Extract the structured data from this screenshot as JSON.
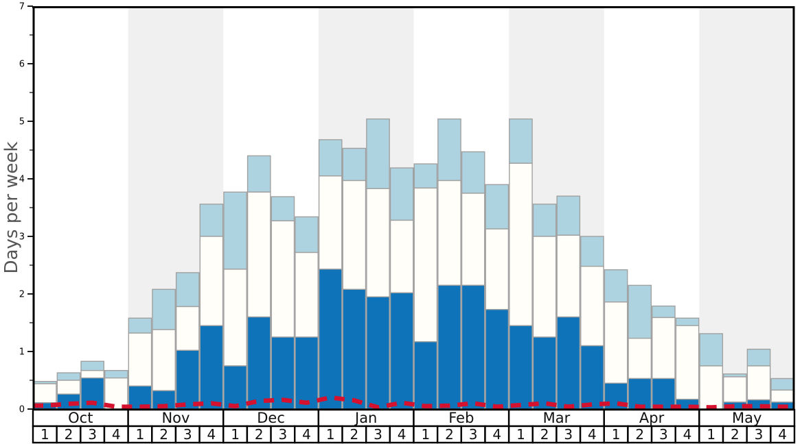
{
  "chart_data": {
    "type": "bar",
    "subtype": "stacked-bars-with-dashed-line-overlay",
    "title": "",
    "ylabel": "Days per week",
    "ylim": [
      0,
      7
    ],
    "yticks": [
      "0",
      "1",
      "2",
      "3",
      "4",
      "5",
      "6",
      "7"
    ],
    "minor_ticks_at_halves": true,
    "grid": false,
    "legend_position": "none",
    "months": [
      "Oct",
      "Nov",
      "Dec",
      "Jan",
      "Feb",
      "Mar",
      "Apr",
      "May"
    ],
    "weeks_per_month": [
      "1",
      "2",
      "3",
      "4"
    ],
    "band_colors": {
      "alternate_month_band": "#f0f0f0",
      "base_month_band": "#ffffff"
    },
    "bar_border_color": "#a0a0a0",
    "axis_color": "#000000",
    "label_text_color": "#111111",
    "ylabel_color": "#555555",
    "series": [
      {
        "name": "dark-blue-segment",
        "color": "#0e73b8",
        "stack_top": [
          0.11,
          0.26,
          0.54,
          0.0,
          0.4,
          0.32,
          1.02,
          1.45,
          0.75,
          1.6,
          1.25,
          1.25,
          2.43,
          2.08,
          1.95,
          2.02,
          1.17,
          2.15,
          2.15,
          1.73,
          1.45,
          1.25,
          1.6,
          1.1,
          0.45,
          0.53,
          0.53,
          0.17,
          0.0,
          0.12,
          0.16,
          0.12
        ]
      },
      {
        "name": "white-segment",
        "color": "#fffef9",
        "stack_top": [
          0.44,
          0.5,
          0.67,
          0.54,
          1.32,
          1.38,
          1.78,
          3.0,
          2.43,
          3.77,
          3.27,
          2.72,
          4.05,
          3.97,
          3.83,
          3.28,
          3.84,
          3.97,
          3.75,
          3.13,
          4.27,
          3.0,
          3.02,
          2.48,
          1.86,
          1.23,
          1.59,
          1.45,
          0.75,
          0.56,
          0.75,
          0.33
        ]
      },
      {
        "name": "light-blue-segment",
        "color": "#aed3e0",
        "stack_top": [
          0.48,
          0.63,
          0.83,
          0.67,
          1.58,
          2.08,
          2.37,
          3.56,
          3.77,
          4.4,
          3.69,
          3.34,
          4.68,
          4.53,
          5.04,
          4.19,
          4.26,
          5.04,
          4.47,
          3.9,
          5.04,
          3.56,
          3.7,
          3.0,
          2.42,
          2.15,
          1.79,
          1.58,
          1.31,
          0.61,
          1.04,
          0.53
        ]
      },
      {
        "name": "red-dashed-line",
        "type": "line",
        "color": "#d4112e",
        "values": [
          0.06,
          0.09,
          0.11,
          0.04,
          0.04,
          0.05,
          0.08,
          0.1,
          0.05,
          0.14,
          0.16,
          0.11,
          0.2,
          0.15,
          0.03,
          0.11,
          0.05,
          0.06,
          0.1,
          0.04,
          0.07,
          0.1,
          0.04,
          0.08,
          0.1,
          0.04,
          0.04,
          0.04,
          0.03,
          0.05,
          0.05,
          0.04
        ]
      }
    ]
  }
}
